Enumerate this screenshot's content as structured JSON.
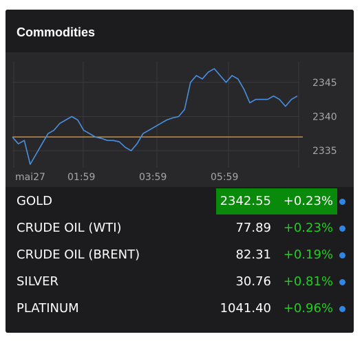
{
  "widget": {
    "title": "Commodities"
  },
  "chart": {
    "type": "line",
    "x_tick_labels": [
      "mai27",
      "01:59",
      "03:59",
      "05:59"
    ],
    "y_tick_labels": [
      "2345",
      "2340",
      "2335"
    ],
    "ylim": [
      2332.5,
      2348
    ],
    "reference_line": 2337,
    "line_color": "#4a90e2",
    "reference_color": "#d98a2b",
    "grid": true,
    "series": [
      2337,
      2336,
      2336.5,
      2333,
      2334.5,
      2336,
      2337.5,
      2338,
      2339,
      2339.5,
      2340,
      2339.5,
      2338,
      2337.5,
      2337,
      2336.8,
      2336.5,
      2336.5,
      2336.3,
      2335.5,
      2335,
      2336,
      2337.5,
      2338,
      2338.5,
      2339,
      2339.5,
      2339.8,
      2340,
      2341,
      2345,
      2346,
      2345.5,
      2346.5,
      2347,
      2346,
      2345,
      2346,
      2345.5,
      2344,
      2342,
      2342.5,
      2342.5,
      2342.5,
      2343,
      2342.5,
      2341.5,
      2342.5,
      2343
    ]
  },
  "quotes": [
    {
      "name": "GOLD",
      "price": "2342.55",
      "change": "+0.23%",
      "highlight": true
    },
    {
      "name": "CRUDE OIL (WTI)",
      "price": "77.89",
      "change": "+0.23%",
      "highlight": false
    },
    {
      "name": "CRUDE OIL (BRENT)",
      "price": "82.31",
      "change": "+0.19%",
      "highlight": false
    },
    {
      "name": "SILVER",
      "price": "30.76",
      "change": "+0.81%",
      "highlight": false
    },
    {
      "name": "PLATINUM",
      "price": "1041.40",
      "change": "+0.96%",
      "highlight": false
    }
  ],
  "colors": {
    "positive": "#22cc22",
    "highlight_bg": "#0a8a0a",
    "dot": "#2f86e6"
  }
}
